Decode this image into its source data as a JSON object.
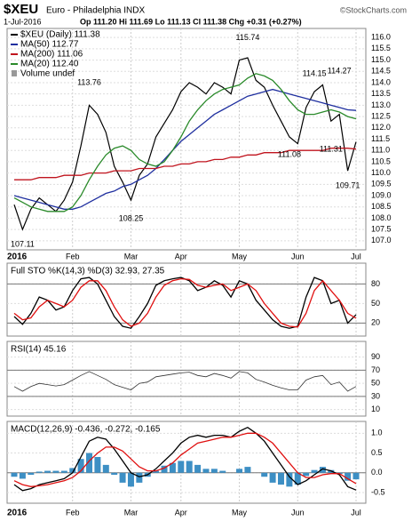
{
  "header": {
    "title": "$XEU",
    "subtitle": "Euro - Philadelphia INDX",
    "credit": "©StockCharts.com",
    "date": "1-Jul-2016",
    "quote": "Op 111.20 Hi 111.69 Lo 111.13 Cl 111.38 Chg +0.31 (+0.27%)"
  },
  "chart_data": [
    {
      "type": "line",
      "volume_label": "Volume undef",
      "categories": [
        "2016",
        null,
        null,
        null,
        null,
        null,
        null,
        "Feb",
        null,
        null,
        null,
        null,
        null,
        null,
        "Mar",
        null,
        null,
        null,
        null,
        null,
        "Apr",
        null,
        null,
        null,
        null,
        null,
        null,
        "May",
        null,
        null,
        null,
        null,
        null,
        null,
        "Jun",
        null,
        null,
        null,
        null,
        null,
        null,
        "Jul"
      ],
      "series": [
        {
          "name": "$XEU (Daily) 111.38",
          "color": "#000000",
          "values": [
            108.6,
            107.5,
            108.4,
            108.9,
            108.6,
            108.3,
            108.8,
            109.6,
            111.2,
            113.0,
            112.6,
            111.8,
            110.3,
            109.6,
            108.8,
            109.9,
            110.4,
            111.6,
            112.2,
            112.8,
            113.6,
            114.0,
            113.8,
            113.5,
            114.0,
            113.8,
            113.5,
            115.0,
            115.1,
            114.1,
            113.8,
            113.0,
            112.3,
            111.6,
            111.3,
            112.9,
            113.6,
            113.9,
            112.3,
            112.6,
            110.1,
            111.38
          ]
        },
        {
          "name": "MA(50) 112.77",
          "color": "#1f2f9f",
          "values": [
            109.0,
            108.9,
            108.8,
            108.7,
            108.6,
            108.5,
            108.4,
            108.4,
            108.5,
            108.7,
            108.9,
            109.1,
            109.2,
            109.4,
            109.5,
            109.7,
            109.9,
            110.2,
            110.6,
            111.0,
            111.4,
            111.7,
            112.0,
            112.3,
            112.6,
            112.8,
            113.0,
            113.2,
            113.4,
            113.5,
            113.6,
            113.7,
            113.6,
            113.5,
            113.4,
            113.3,
            113.2,
            113.1,
            113.0,
            112.9,
            112.8,
            112.77
          ]
        },
        {
          "name": "MA(200) 111.06",
          "color": "#c0141e",
          "values": [
            109.7,
            109.7,
            109.7,
            109.8,
            109.8,
            109.8,
            109.9,
            109.9,
            109.9,
            110.0,
            110.0,
            110.0,
            110.1,
            110.1,
            110.1,
            110.2,
            110.2,
            110.2,
            110.3,
            110.3,
            110.4,
            110.4,
            110.5,
            110.5,
            110.6,
            110.6,
            110.7,
            110.7,
            110.8,
            110.8,
            110.9,
            110.9,
            110.9,
            111.0,
            111.0,
            111.0,
            111.0,
            111.0,
            111.1,
            111.1,
            111.1,
            111.06
          ]
        },
        {
          "name": "MA(20) 112.40",
          "color": "#2a8a2a",
          "values": [
            108.9,
            108.7,
            108.5,
            108.4,
            108.3,
            108.3,
            108.3,
            108.5,
            109.0,
            109.7,
            110.3,
            110.8,
            111.1,
            111.2,
            111.0,
            110.6,
            110.4,
            110.3,
            110.5,
            111.0,
            111.6,
            112.3,
            112.8,
            113.2,
            113.5,
            113.7,
            113.8,
            113.9,
            114.2,
            114.4,
            114.3,
            114.1,
            113.7,
            113.2,
            112.8,
            112.6,
            112.6,
            112.7,
            112.8,
            112.7,
            112.5,
            112.4
          ]
        }
      ],
      "annotations": [
        null,
        107.11,
        null,
        null,
        null,
        null,
        null,
        null,
        null,
        113.76,
        null,
        null,
        null,
        null,
        108.25,
        null,
        null,
        null,
        null,
        null,
        null,
        null,
        null,
        null,
        null,
        null,
        null,
        null,
        115.74,
        null,
        null,
        null,
        null,
        111.08,
        null,
        null,
        114.15,
        null,
        111.31,
        114.27,
        109.71,
        null
      ],
      "ylim": [
        106.6,
        116.4
      ],
      "yticks": [
        {
          "value": 107,
          "label": "107.0"
        },
        {
          "value": 107.5,
          "label": "107.5"
        },
        {
          "value": 108,
          "label": "108.0"
        },
        {
          "value": 108.5,
          "label": "108.5"
        },
        {
          "value": 109,
          "label": "109.0"
        },
        {
          "value": 109.5,
          "label": "109.5"
        },
        {
          "value": 110,
          "label": "110.0"
        },
        {
          "value": 110.5,
          "label": "110.5"
        },
        {
          "value": 111,
          "label": "111.0"
        },
        {
          "value": 111.5,
          "label": "111.5"
        },
        {
          "value": 112,
          "label": "112.0"
        },
        {
          "value": 112.5,
          "label": "112.5"
        },
        {
          "value": 113,
          "label": "113.0"
        },
        {
          "value": 113.5,
          "label": "113.5"
        },
        {
          "value": 114,
          "label": "114.0"
        },
        {
          "value": 114.5,
          "label": "114.5"
        },
        {
          "value": 115,
          "label": "115.0"
        },
        {
          "value": 115.5,
          "label": "115.5"
        },
        {
          "value": 116,
          "label": "116.0"
        }
      ],
      "grid": true
    },
    {
      "type": "line",
      "label": "Full STO %K(14,3) %D(3) 32.93, 27.35",
      "series": [
        {
          "name": "%K",
          "color": "#000000",
          "values": [
            30,
            18,
            35,
            60,
            55,
            40,
            45,
            70,
            88,
            90,
            80,
            55,
            30,
            15,
            12,
            30,
            50,
            78,
            85,
            88,
            90,
            85,
            70,
            75,
            85,
            78,
            60,
            85,
            80,
            55,
            40,
            25,
            15,
            12,
            15,
            60,
            90,
            85,
            50,
            55,
            20,
            32.93
          ]
        },
        {
          "name": "%D",
          "color": "#e01010",
          "values": [
            35,
            25,
            28,
            45,
            55,
            50,
            45,
            55,
            75,
            85,
            85,
            70,
            45,
            25,
            15,
            20,
            35,
            60,
            78,
            85,
            88,
            87,
            78,
            75,
            78,
            80,
            70,
            75,
            80,
            70,
            50,
            35,
            20,
            15,
            14,
            35,
            70,
            85,
            70,
            55,
            35,
            27.35
          ]
        }
      ],
      "ylim": [
        0,
        112
      ],
      "yticks": [
        20,
        50,
        80
      ],
      "reference_lines": [
        20,
        80
      ],
      "grid": true
    },
    {
      "type": "line",
      "label": "RSI(14) 45.16",
      "series": [
        {
          "name": "RSI",
          "color": "#333333",
          "values": [
            45,
            38,
            45,
            50,
            48,
            46,
            48,
            55,
            62,
            68,
            62,
            56,
            48,
            44,
            40,
            50,
            52,
            60,
            62,
            64,
            66,
            67,
            62,
            60,
            65,
            62,
            58,
            68,
            66,
            56,
            52,
            47,
            43,
            40,
            40,
            55,
            60,
            62,
            48,
            52,
            38,
            45.16
          ]
        }
      ],
      "ylim": [
        0,
        114
      ],
      "yticks": [
        10,
        30,
        50,
        70,
        90
      ],
      "reference_lines": [
        30,
        70
      ],
      "grid": true
    },
    {
      "type": "line",
      "label": "MACD(12,26,9) -0.436, -0.272, -0.165",
      "categories": [
        "2016",
        null,
        null,
        null,
        null,
        null,
        null,
        "Feb",
        null,
        null,
        null,
        null,
        null,
        null,
        "Mar",
        null,
        null,
        null,
        null,
        null,
        "Apr",
        null,
        null,
        null,
        null,
        null,
        null,
        "May",
        null,
        null,
        null,
        null,
        null,
        null,
        "Jun",
        null,
        null,
        null,
        null,
        null,
        null,
        "Jul"
      ],
      "series": [
        {
          "name": "Histogram",
          "type": "bar",
          "color": "#3d8fc4",
          "values": [
            -0.1,
            -0.15,
            -0.05,
            0.03,
            0.05,
            0.05,
            0.05,
            0.12,
            0.35,
            0.5,
            0.4,
            0.2,
            -0.05,
            -0.25,
            -0.35,
            -0.25,
            -0.1,
            0.05,
            0.18,
            0.25,
            0.3,
            0.3,
            0.2,
            0.1,
            0.1,
            0.05,
            0.0,
            0.1,
            0.15,
            0.0,
            -0.1,
            -0.25,
            -0.3,
            -0.35,
            -0.3,
            -0.08,
            0.07,
            0.15,
            0.07,
            -0.03,
            -0.2,
            -0.165
          ]
        },
        {
          "name": "MACD",
          "color": "#000000",
          "values": [
            -0.3,
            -0.45,
            -0.4,
            -0.3,
            -0.25,
            -0.2,
            -0.15,
            0.0,
            0.4,
            0.8,
            0.9,
            0.85,
            0.6,
            0.3,
            0.0,
            -0.1,
            -0.05,
            0.1,
            0.3,
            0.5,
            0.75,
            0.9,
            0.95,
            0.9,
            0.95,
            0.95,
            0.9,
            1.05,
            1.15,
            1.0,
            0.8,
            0.5,
            0.2,
            -0.1,
            -0.3,
            -0.2,
            -0.05,
            0.1,
            0.05,
            -0.05,
            -0.35,
            -0.436
          ]
        },
        {
          "name": "Signal",
          "color": "#e01010",
          "values": [
            -0.2,
            -0.3,
            -0.35,
            -0.33,
            -0.3,
            -0.25,
            -0.2,
            -0.12,
            0.05,
            0.3,
            0.5,
            0.65,
            0.65,
            0.55,
            0.35,
            0.15,
            0.05,
            0.05,
            0.12,
            0.25,
            0.45,
            0.6,
            0.75,
            0.8,
            0.85,
            0.9,
            0.9,
            0.95,
            1.0,
            1.0,
            0.9,
            0.75,
            0.5,
            0.25,
            0.0,
            -0.12,
            -0.12,
            -0.05,
            -0.02,
            -0.02,
            -0.15,
            -0.272
          ]
        }
      ],
      "ylim": [
        -0.77,
        1.3
      ],
      "yticks": [
        -0.5,
        {
          "value": 0,
          "label": "0.0"
        },
        0.5,
        {
          "value": 1,
          "label": "1.0"
        }
      ],
      "reference_lines": [
        0
      ],
      "grid": true
    }
  ]
}
